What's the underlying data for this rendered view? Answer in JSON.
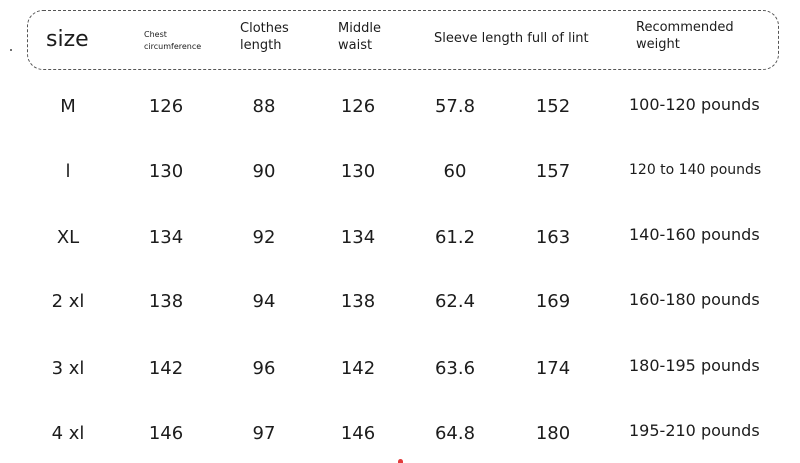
{
  "header": {
    "size": "size",
    "chest_line1": "Chest",
    "chest_line2": "circumference",
    "length_line1": "Clothes",
    "length_line2": "length",
    "waist_line1": "Middle",
    "waist_line2": "waist",
    "sleeve": "Sleeve length full of lint",
    "weight_line1": "Recommended",
    "weight_line2": "weight"
  },
  "rows": [
    {
      "size": "M",
      "chest": "126",
      "length": "88",
      "waist": "126",
      "sleeve": "57.8",
      "extra": "152",
      "weight": "100-120 pounds"
    },
    {
      "size": "l",
      "chest": "130",
      "length": "90",
      "waist": "130",
      "sleeve": "60",
      "extra": "157",
      "weight": "120 to 140 pounds"
    },
    {
      "size": "XL",
      "chest": "134",
      "length": "92",
      "waist": "134",
      "sleeve": "61.2",
      "extra": "163",
      "weight": "140-160 pounds"
    },
    {
      "size": "2 xl",
      "chest": "138",
      "length": "94",
      "waist": "138",
      "sleeve": "62.4",
      "extra": "169",
      "weight": "160-180 pounds"
    },
    {
      "size": "3 xl",
      "chest": "142",
      "length": "96",
      "waist": "142",
      "sleeve": "63.6",
      "extra": "174",
      "weight": "180-195 pounds"
    },
    {
      "size": "4 xl",
      "chest": "146",
      "length": "97",
      "waist": "146",
      "sleeve": "64.8",
      "extra": "180",
      "weight": "195-210 pounds"
    }
  ]
}
